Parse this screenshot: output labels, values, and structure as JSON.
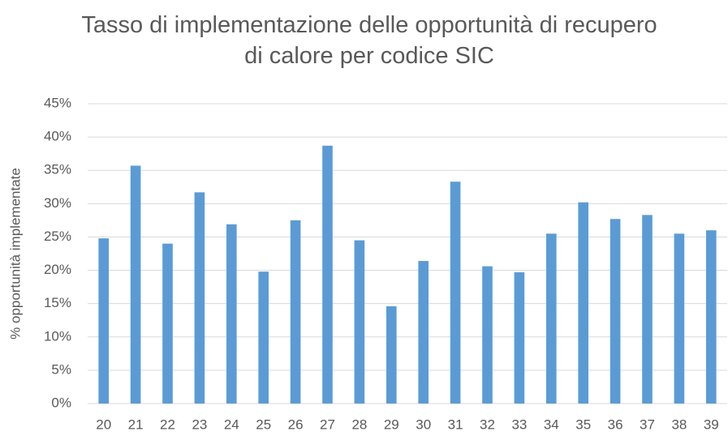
{
  "chart_data": {
    "type": "bar",
    "title": "Tasso di implementazione delle opportunità di recupero di calore per codice SIC",
    "y_label": "% opportunità implementate",
    "categories": [
      "20",
      "21",
      "22",
      "23",
      "24",
      "25",
      "26",
      "27",
      "28",
      "29",
      "30",
      "31",
      "32",
      "33",
      "34",
      "35",
      "36",
      "37",
      "38",
      "39"
    ],
    "values": [
      24.8,
      35.7,
      24.0,
      31.7,
      26.9,
      19.8,
      27.5,
      38.7,
      24.5,
      14.6,
      21.4,
      33.3,
      20.6,
      19.7,
      25.5,
      30.2,
      27.7,
      28.3,
      25.5,
      26.0
    ],
    "color": "#5b9bd5",
    "ylim": [
      0,
      45
    ],
    "yticks": [
      {
        "value": 0,
        "label": "0%"
      },
      {
        "value": 5,
        "label": "5%"
      },
      {
        "value": 10,
        "label": "10%"
      },
      {
        "value": 15,
        "label": "15%"
      },
      {
        "value": 20,
        "label": "20%"
      },
      {
        "value": 25,
        "label": "25%"
      },
      {
        "value": 30,
        "label": "30%"
      },
      {
        "value": 35,
        "label": "35%"
      },
      {
        "value": 40,
        "label": "40%"
      },
      {
        "value": 45,
        "label": "45%"
      }
    ],
    "grid": true
  }
}
